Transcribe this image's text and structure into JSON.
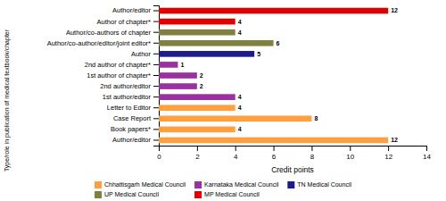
{
  "chart_data": {
    "type": "bar",
    "orientation": "horizontal",
    "xlabel": "Credit points",
    "ylabel": "Type/role in publication of medical textbook/chapter",
    "categories": [
      "Author/editor",
      "Book papers*",
      "Case Report",
      "Letter to Editor",
      "1st author/editor",
      "2nd author/editor",
      "1st author of chapter*",
      "2nd author of chapter*",
      "Author",
      "Author/co-author/editor/joint editor*",
      "Author/co-authors of chapter",
      "Author of chapter*",
      "Author/editor"
    ],
    "series": [
      {
        "name": "Chhattisgarh Medical Council",
        "color": "#FFA040",
        "values": [
          12,
          4,
          8,
          4,
          null,
          null,
          null,
          null,
          null,
          null,
          null,
          null,
          null
        ]
      },
      {
        "name": "Karnataka Medical Council",
        "color": "#9B30A0",
        "values": [
          null,
          null,
          null,
          null,
          4,
          2,
          2,
          1,
          null,
          null,
          null,
          null,
          null
        ]
      },
      {
        "name": "TN Medical Council",
        "color": "#1C1C8C",
        "values": [
          null,
          null,
          null,
          null,
          null,
          null,
          null,
          null,
          5,
          null,
          null,
          null,
          null
        ]
      },
      {
        "name": "UP Medical Council",
        "color": "#808040",
        "values": [
          null,
          null,
          null,
          null,
          null,
          null,
          null,
          null,
          null,
          6,
          4,
          null,
          null
        ]
      },
      {
        "name": "MP Medical Council",
        "color": "#E00000",
        "values": [
          null,
          null,
          null,
          null,
          null,
          null,
          null,
          null,
          null,
          null,
          null,
          4,
          12
        ]
      }
    ],
    "xlim": [
      0,
      14
    ],
    "xticks": [
      0,
      2,
      4,
      6,
      8,
      10,
      12,
      14
    ],
    "data_labels": true,
    "grid": false,
    "legend": "bottom"
  }
}
